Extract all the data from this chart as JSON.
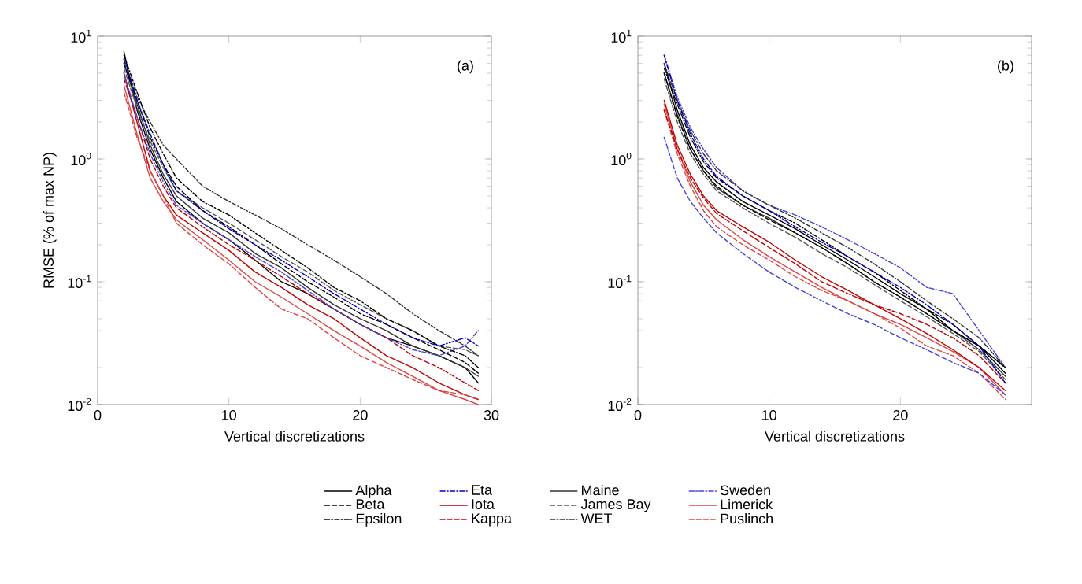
{
  "chart_data": [
    {
      "type": "line",
      "xlabel": "Vertical discretizations",
      "ylabel": "RMSE (% of max NP)",
      "annotations": [
        "(a)"
      ],
      "log": "y",
      "legend": "bottom",
      "xlim": [
        0,
        30
      ],
      "ylim": [
        0.01,
        10
      ],
      "xticks": [
        0,
        10,
        20,
        30
      ],
      "yticks": [
        {
          "value": 0.01,
          "label": "10$^{-2}$"
        },
        {
          "value": 0.1,
          "label": "10$^{-1}$"
        },
        {
          "value": 1,
          "label": "10$^{0}$"
        },
        {
          "value": 10,
          "label": "10$^{1}$"
        }
      ],
      "x": [
        2,
        3,
        4,
        5,
        6,
        8,
        10,
        12,
        14,
        16,
        18,
        20,
        22,
        24,
        26,
        28,
        29
      ],
      "series": [
        {
          "name": "Alpha",
          "color": "#000000",
          "line_style": "solid",
          "values": [
            7.5,
            2.5,
            1.2,
            0.7,
            0.45,
            0.3,
            0.22,
            0.15,
            0.1,
            0.08,
            0.06,
            0.045,
            0.035,
            0.03,
            0.025,
            0.02,
            0.015
          ]
        },
        {
          "name": "Beta",
          "color": "#000000",
          "line_style": "dashed",
          "values": [
            6,
            3,
            1.5,
            0.9,
            0.6,
            0.38,
            0.28,
            0.2,
            0.14,
            0.1,
            0.075,
            0.055,
            0.045,
            0.035,
            0.028,
            0.022,
            0.018
          ]
        },
        {
          "name": "Epsilon",
          "color": "#000000",
          "line_style": "dashdot",
          "values": [
            7,
            3.5,
            1.8,
            1.1,
            0.7,
            0.45,
            0.35,
            0.25,
            0.18,
            0.13,
            0.09,
            0.07,
            0.05,
            0.04,
            0.03,
            0.025,
            0.02
          ]
        },
        {
          "name": "Eta",
          "color": "#0000c0",
          "line_style": "dashdot",
          "values": [
            6.5,
            3,
            1.6,
            0.9,
            0.55,
            0.38,
            0.27,
            0.2,
            0.15,
            0.11,
            0.08,
            0.06,
            0.045,
            0.035,
            0.03,
            0.035,
            0.03
          ]
        },
        {
          "name": "Iota",
          "color": "#c00000",
          "line_style": "solid",
          "values": [
            5,
            2,
            0.8,
            0.5,
            0.35,
            0.25,
            0.18,
            0.12,
            0.09,
            0.065,
            0.05,
            0.035,
            0.025,
            0.02,
            0.015,
            0.012,
            0.011
          ]
        },
        {
          "name": "Kappa",
          "color": "#c00000",
          "line_style": "dashed",
          "values": [
            4.5,
            2.2,
            1,
            0.6,
            0.4,
            0.28,
            0.2,
            0.15,
            0.11,
            0.08,
            0.06,
            0.045,
            0.035,
            0.025,
            0.02,
            0.015,
            0.013
          ]
        },
        {
          "name": "Maine",
          "color": "#333333",
          "line_style": "solid",
          "values": [
            6,
            2.8,
            1.3,
            0.75,
            0.5,
            0.33,
            0.25,
            0.17,
            0.13,
            0.09,
            0.065,
            0.05,
            0.04,
            0.03,
            0.025,
            0.02,
            0.017
          ]
        },
        {
          "name": "James Bay",
          "color": "#555555",
          "line_style": "dashed",
          "values": [
            5.5,
            2.6,
            1.4,
            0.85,
            0.55,
            0.4,
            0.3,
            0.22,
            0.16,
            0.12,
            0.085,
            0.065,
            0.05,
            0.04,
            0.03,
            0.028,
            0.025
          ]
        },
        {
          "name": "WET",
          "color": "#333333",
          "line_style": "dashdot",
          "values": [
            6.5,
            3.2,
            2,
            1.3,
            1,
            0.6,
            0.45,
            0.35,
            0.27,
            0.2,
            0.15,
            0.11,
            0.08,
            0.055,
            0.04,
            0.03,
            0.025
          ]
        },
        {
          "name": "Sweden",
          "color": "#4444dd",
          "line_style": "dashdot",
          "values": [
            5,
            2.2,
            1.1,
            0.65,
            0.42,
            0.3,
            0.22,
            0.16,
            0.12,
            0.085,
            0.06,
            0.045,
            0.035,
            0.028,
            0.025,
            0.03,
            0.04
          ]
        },
        {
          "name": "Limerick",
          "color": "#dd4444",
          "line_style": "solid",
          "values": [
            4,
            1.6,
            0.7,
            0.45,
            0.32,
            0.22,
            0.15,
            0.1,
            0.075,
            0.055,
            0.04,
            0.03,
            0.022,
            0.017,
            0.013,
            0.011,
            0.01
          ]
        },
        {
          "name": "Puslinch",
          "color": "#dd4444",
          "line_style": "dashed",
          "values": [
            3.5,
            1.5,
            0.8,
            0.5,
            0.3,
            0.2,
            0.14,
            0.09,
            0.06,
            0.05,
            0.035,
            0.025,
            0.02,
            0.016,
            0.013,
            0.012,
            0.011
          ]
        }
      ]
    },
    {
      "type": "line",
      "xlabel": "Vertical discretizations",
      "annotations": [
        "(b)"
      ],
      "log": "y",
      "xlim": [
        0,
        30
      ],
      "ylim": [
        0.01,
        10
      ],
      "xticks": [
        0,
        10,
        20
      ],
      "yticks": [
        {
          "value": 0.01,
          "label": "10$^{-2}$"
        },
        {
          "value": 0.1,
          "label": "10$^{-1}$"
        },
        {
          "value": 1,
          "label": "10$^{0}$"
        },
        {
          "value": 10,
          "label": "10$^{1}$"
        }
      ],
      "x": [
        2,
        3,
        4,
        5,
        6,
        8,
        10,
        12,
        14,
        16,
        18,
        20,
        22,
        24,
        26,
        28
      ],
      "series": [
        {
          "color": "#000000",
          "line_style": "solid",
          "values": [
            6,
            2.5,
            1.3,
            0.85,
            0.65,
            0.45,
            0.35,
            0.27,
            0.2,
            0.15,
            0.11,
            0.08,
            0.06,
            0.04,
            0.03,
            0.018
          ]
        },
        {
          "color": "#000000",
          "line_style": "dashed",
          "values": [
            5,
            2.2,
            1.2,
            0.8,
            0.6,
            0.42,
            0.32,
            0.25,
            0.19,
            0.14,
            0.1,
            0.075,
            0.055,
            0.04,
            0.03,
            0.02
          ]
        },
        {
          "color": "#000000",
          "line_style": "dashdot",
          "values": [
            5.5,
            2.8,
            1.5,
            0.95,
            0.7,
            0.5,
            0.38,
            0.3,
            0.22,
            0.16,
            0.12,
            0.085,
            0.06,
            0.045,
            0.03,
            0.02
          ]
        },
        {
          "color": "#0000c0",
          "line_style": "dashdot",
          "values": [
            7,
            3,
            1.6,
            1,
            0.72,
            0.5,
            0.38,
            0.28,
            0.21,
            0.16,
            0.12,
            0.09,
            0.065,
            0.045,
            0.03,
            0.015
          ]
        },
        {
          "color": "#c00000",
          "line_style": "solid",
          "values": [
            3,
            1.3,
            0.75,
            0.5,
            0.38,
            0.28,
            0.21,
            0.15,
            0.11,
            0.085,
            0.065,
            0.05,
            0.038,
            0.028,
            0.02,
            0.013
          ]
        },
        {
          "color": "#c00000",
          "line_style": "dashed",
          "values": [
            2.5,
            1.2,
            0.7,
            0.48,
            0.36,
            0.26,
            0.19,
            0.14,
            0.1,
            0.08,
            0.065,
            0.055,
            0.045,
            0.035,
            0.025,
            0.015
          ]
        },
        {
          "color": "#333333",
          "line_style": "solid",
          "values": [
            5,
            2.3,
            1.2,
            0.8,
            0.58,
            0.42,
            0.33,
            0.25,
            0.19,
            0.14,
            0.1,
            0.075,
            0.055,
            0.04,
            0.028,
            0.017
          ]
        },
        {
          "color": "#555555",
          "line_style": "dashed",
          "values": [
            4.5,
            2,
            1.1,
            0.75,
            0.55,
            0.4,
            0.3,
            0.23,
            0.17,
            0.13,
            0.095,
            0.07,
            0.052,
            0.038,
            0.027,
            0.016
          ]
        },
        {
          "color": "#333333",
          "line_style": "dashdot",
          "values": [
            6,
            3,
            1.7,
            1.1,
            0.8,
            0.55,
            0.42,
            0.33,
            0.25,
            0.19,
            0.14,
            0.1,
            0.07,
            0.05,
            0.035,
            0.02
          ]
        },
        {
          "color": "#4444dd",
          "line_style": "dashdot",
          "values": [
            7,
            3.2,
            1.8,
            1.2,
            0.85,
            0.55,
            0.42,
            0.35,
            0.28,
            0.22,
            0.17,
            0.13,
            0.09,
            0.08,
            0.04,
            0.02
          ]
        },
        {
          "color": "#4444dd",
          "line_style": "dashed",
          "values": [
            1.5,
            0.7,
            0.45,
            0.33,
            0.25,
            0.17,
            0.12,
            0.09,
            0.07,
            0.055,
            0.045,
            0.035,
            0.028,
            0.022,
            0.018,
            0.012
          ]
        },
        {
          "color": "#dd4444",
          "line_style": "solid",
          "values": [
            2.8,
            1.2,
            0.65,
            0.42,
            0.32,
            0.22,
            0.16,
            0.12,
            0.09,
            0.07,
            0.055,
            0.045,
            0.035,
            0.027,
            0.02,
            0.012
          ]
        },
        {
          "color": "#dd4444",
          "line_style": "dashed",
          "values": [
            2.5,
            1.1,
            0.6,
            0.38,
            0.28,
            0.2,
            0.15,
            0.11,
            0.085,
            0.07,
            0.055,
            0.042,
            0.03,
            0.025,
            0.018,
            0.011
          ]
        }
      ]
    }
  ]
}
